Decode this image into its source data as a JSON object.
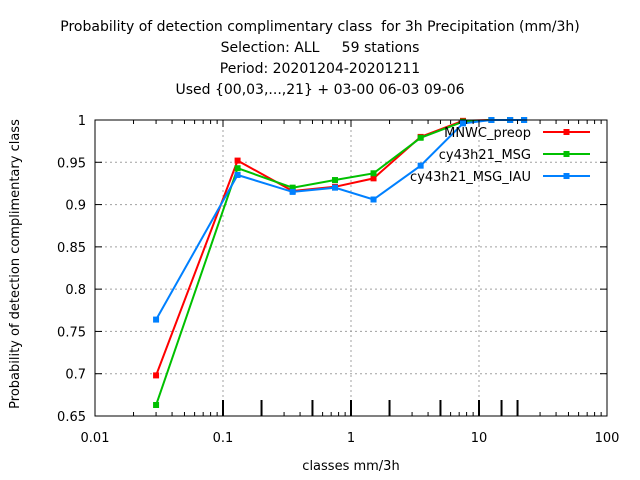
{
  "chart_data": {
    "type": "line",
    "title_lines": [
      "Probability of detection complimentary class  for 3h Precipitation (mm/3h)",
      "Selection: ALL     59 stations",
      "Period: 20201204-20201211",
      "Used {00,03,...,21} + 03-00 06-03 09-06"
    ],
    "xlabel": "classes mm/3h",
    "ylabel": "Probability of detection complimentary class",
    "x_scale": "log",
    "xlim": [
      0.01,
      100
    ],
    "ylim": [
      0.65,
      1.0
    ],
    "x_ticks": [
      0.01,
      0.1,
      1,
      10,
      100
    ],
    "x_tick_labels": [
      "0.01",
      "0.1",
      "1",
      "10",
      "100"
    ],
    "y_ticks": [
      0.65,
      0.7,
      0.75,
      0.8,
      0.85,
      0.9,
      0.95,
      1.0
    ],
    "y_tick_labels": [
      "0.65",
      "0.7",
      "0.75",
      "0.8",
      "0.85",
      "0.9",
      "0.95",
      "1"
    ],
    "grid": true,
    "legend_position": "top-right",
    "class_marks": [
      0.1,
      0.2,
      0.5,
      1,
      2,
      5,
      10,
      15,
      20
    ],
    "series": [
      {
        "name": "MNWC_preop",
        "color": "#ff0000",
        "x": [
          0.03,
          0.13,
          0.35,
          0.75,
          1.5,
          3.5,
          7.5,
          12.5,
          17.5,
          22.5
        ],
        "y": [
          0.698,
          0.952,
          0.916,
          0.921,
          0.931,
          0.98,
          0.999,
          1.0,
          1.0,
          1.0
        ]
      },
      {
        "name": "cy43h21_MSG",
        "color": "#00c000",
        "x": [
          0.03,
          0.13,
          0.35,
          0.75,
          1.5,
          3.5,
          7.5,
          12.5,
          17.5,
          22.5
        ],
        "y": [
          0.663,
          0.943,
          0.92,
          0.929,
          0.937,
          0.979,
          0.998,
          1.0,
          1.0,
          1.0
        ]
      },
      {
        "name": "cy43h21_MSG_IAU",
        "color": "#0080ff",
        "x": [
          0.03,
          0.13,
          0.35,
          0.75,
          1.5,
          3.5,
          7.5,
          12.5,
          17.5,
          22.5
        ],
        "y": [
          0.764,
          0.935,
          0.915,
          0.92,
          0.906,
          0.946,
          0.996,
          1.0,
          1.0,
          1.0
        ]
      }
    ]
  }
}
